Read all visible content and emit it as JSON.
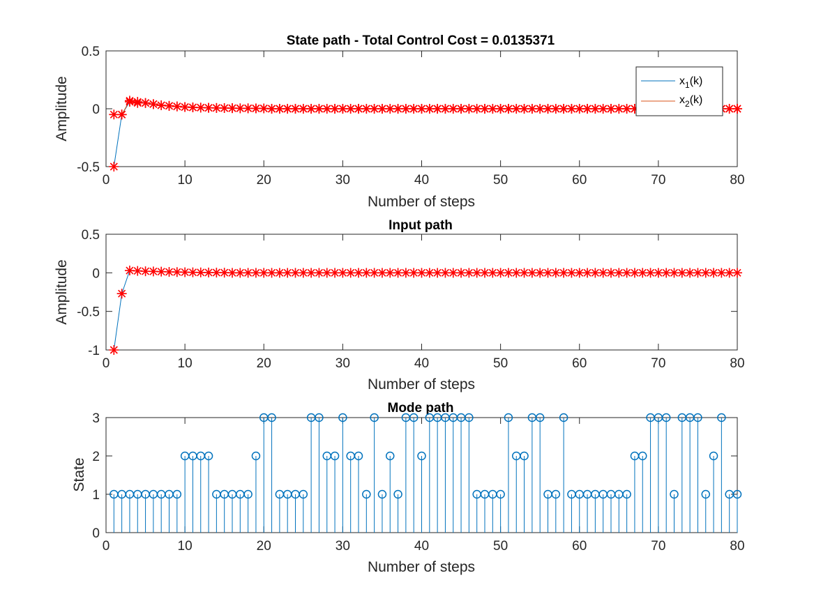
{
  "chart_data": [
    {
      "type": "line",
      "title": "State path - Total Control Cost = 0.0135371",
      "xlabel": "Number of steps",
      "ylabel": "Amplitude",
      "xlim": [
        0,
        80
      ],
      "ylim": [
        -0.5,
        0.5
      ],
      "xticks": [
        "0",
        "10",
        "20",
        "30",
        "40",
        "50",
        "60",
        "70",
        "80"
      ],
      "yticks": [
        "-0.5",
        "0",
        "0.5"
      ],
      "legend": {
        "position": "top-right",
        "entries": [
          {
            "base": "x",
            "sub": "1",
            "suffix": "(k)",
            "color": "#0072BD"
          },
          {
            "base": "x",
            "sub": "2",
            "suffix": "(k)",
            "color": "#D95319"
          }
        ]
      },
      "marker_color": "#FF0000",
      "series": [
        {
          "name": "x1(k)",
          "color": "#0072BD",
          "x": "1..80",
          "values": [
            -0.5,
            -0.05,
            0.06,
            0.06,
            0.05,
            0.04,
            0.03,
            0.025,
            0.02,
            0.015,
            0.012,
            0.01,
            0.008,
            0.007,
            0.006,
            0.005,
            0.004,
            0.004,
            0.003,
            0.003
          ]
        },
        {
          "name": "x2(k)",
          "color": "#D95319",
          "x": "1..80",
          "values": [
            -0.05,
            -0.05,
            0.07,
            0.05,
            0.05,
            0.04,
            0.03,
            0.025,
            0.02,
            0.015,
            0.012,
            0.01,
            0.008,
            0.007,
            0.006,
            0.005,
            0.004,
            0.004,
            0.003,
            0.003
          ]
        }
      ],
      "tail_value": 0.0
    },
    {
      "type": "line",
      "title": "Input path",
      "xlabel": "Number of steps",
      "ylabel": "Amplitude",
      "xlim": [
        0,
        80
      ],
      "ylim": [
        -1,
        0.5
      ],
      "xticks": [
        "0",
        "10",
        "20",
        "30",
        "40",
        "50",
        "60",
        "70",
        "80"
      ],
      "yticks": [
        "-1",
        "-0.5",
        "0",
        "0.5"
      ],
      "marker_color": "#FF0000",
      "series": [
        {
          "color": "#0072BD",
          "x": "1..80",
          "values": [
            -1.0,
            -0.27,
            0.03,
            0.025,
            0.02,
            0.018,
            0.015,
            0.012,
            0.01,
            0.008,
            0.006,
            0.005,
            0.004,
            0.003,
            0.002
          ]
        }
      ],
      "tail_value": 0.0
    },
    {
      "type": "stem",
      "title": "Mode path",
      "xlabel": "Number of steps",
      "ylabel": "State",
      "xlim": [
        0,
        80
      ],
      "ylim": [
        0,
        3
      ],
      "xticks": [
        "0",
        "10",
        "20",
        "30",
        "40",
        "50",
        "60",
        "70",
        "80"
      ],
      "yticks": [
        "0",
        "1",
        "2",
        "3"
      ],
      "color": "#0072BD",
      "x_start": 1,
      "values": [
        1,
        1,
        1,
        1,
        1,
        1,
        1,
        1,
        1,
        2,
        2,
        2,
        2,
        1,
        1,
        1,
        1,
        1,
        2,
        3,
        3,
        1,
        1,
        1,
        1,
        3,
        3,
        2,
        2,
        3,
        2,
        2,
        1,
        3,
        1,
        2,
        1,
        3,
        3,
        2,
        3,
        3,
        3,
        3,
        3,
        3,
        1,
        1,
        1,
        1,
        3,
        2,
        2,
        3,
        3,
        1,
        1,
        3,
        1,
        1,
        1,
        1,
        1,
        1,
        1,
        1,
        2,
        2,
        3,
        3,
        3,
        1,
        3,
        3,
        3,
        1,
        2,
        3,
        1,
        1
      ]
    }
  ]
}
